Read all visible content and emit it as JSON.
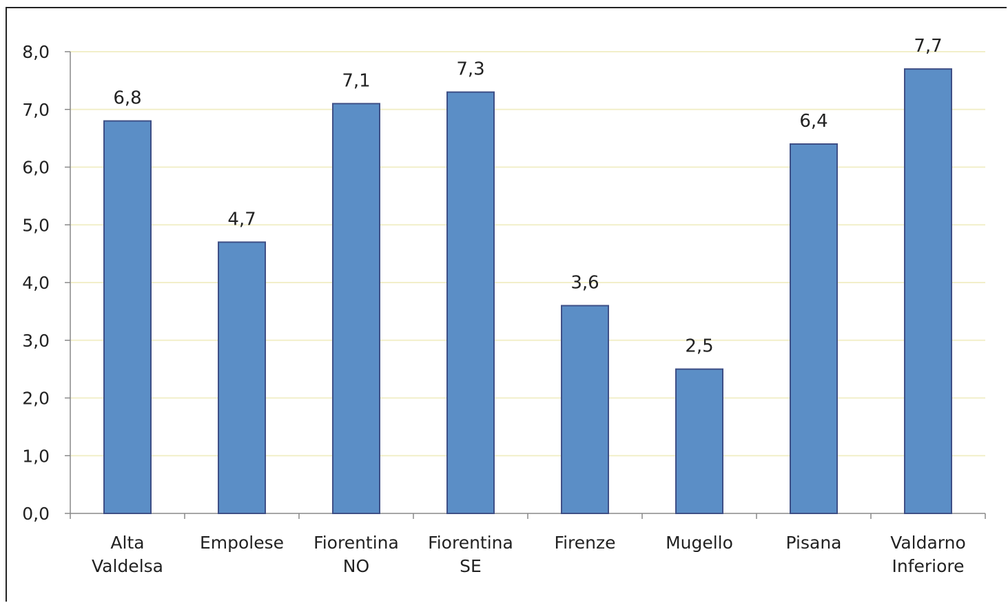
{
  "chart_data": {
    "type": "bar",
    "categories": [
      [
        "Alta",
        "Valdelsa"
      ],
      [
        "Empolese"
      ],
      [
        "Fiorentina",
        "NO"
      ],
      [
        "Fiorentina",
        "SE"
      ],
      [
        "Firenze"
      ],
      [
        "Mugello"
      ],
      [
        "Pisana"
      ],
      [
        "Valdarno",
        "Inferiore"
      ]
    ],
    "values": [
      6.8,
      4.7,
      7.1,
      7.3,
      3.6,
      2.5,
      6.4,
      7.7
    ],
    "data_labels": [
      "6,8",
      "4,7",
      "7,1",
      "7,3",
      "3,6",
      "2,5",
      "6,4",
      "7,7"
    ],
    "ylim": [
      0,
      8
    ],
    "yticks": [
      0,
      1,
      2,
      3,
      4,
      5,
      6,
      7,
      8
    ],
    "ytick_labels": [
      "0,0",
      "1,0",
      "2,0",
      "3,0",
      "4,0",
      "5,0",
      "6,0",
      "7,0",
      "8,0"
    ],
    "grid": true,
    "bar_color": "#5b8ec6",
    "bar_edge_color": "#3e4f86",
    "grid_color": "#f2efc9",
    "title": "",
    "xlabel": "",
    "ylabel": ""
  }
}
